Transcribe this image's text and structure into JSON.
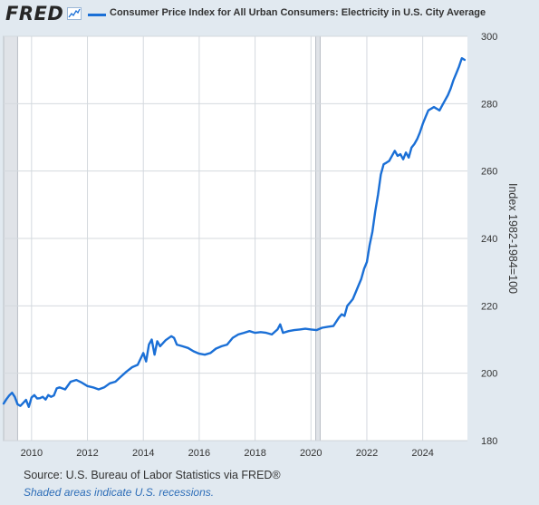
{
  "header": {
    "logo": "FRED",
    "series_label": "Consumer Price Index for All Urban Consumers: Electricity in U.S. City Average"
  },
  "footer": {
    "source": "U.S. Bureau of Labor Statistics via FRED®",
    "note": "Shaded areas indicate U.S. recessions."
  },
  "colors": {
    "line": "#1a6fd6",
    "recession": "#e0e3e8",
    "plot_bg": "#ffffff",
    "page_bg": "#e1e9f0",
    "grid": "#d4d9de"
  },
  "chart_data": {
    "type": "line",
    "title": "",
    "xlabel": "",
    "ylabel": "Index 1982-1984=100",
    "ylim": [
      180,
      300
    ],
    "xlim": [
      2009.0,
      2025.6
    ],
    "y_ticks": [
      180,
      200,
      220,
      240,
      260,
      280,
      300
    ],
    "x_ticks": [
      2010,
      2012,
      2014,
      2016,
      2018,
      2020,
      2022,
      2024
    ],
    "grid": true,
    "y_axis_side": "right",
    "recessions": [
      [
        2008.0,
        2009.5
      ],
      [
        2020.17,
        2020.33
      ]
    ],
    "series": [
      {
        "name": "Consumer Price Index for All Urban Consumers: Electricity in U.S. City Average",
        "x": [
          2009.0,
          2009.1,
          2009.2,
          2009.3,
          2009.4,
          2009.5,
          2009.6,
          2009.7,
          2009.8,
          2009.9,
          2010.0,
          2010.1,
          2010.2,
          2010.3,
          2010.4,
          2010.5,
          2010.6,
          2010.7,
          2010.8,
          2010.9,
          2011.0,
          2011.2,
          2011.4,
          2011.6,
          2011.8,
          2012.0,
          2012.2,
          2012.4,
          2012.6,
          2012.8,
          2013.0,
          2013.2,
          2013.4,
          2013.6,
          2013.8,
          2014.0,
          2014.1,
          2014.2,
          2014.3,
          2014.4,
          2014.5,
          2014.6,
          2014.8,
          2015.0,
          2015.1,
          2015.2,
          2015.4,
          2015.6,
          2015.8,
          2016.0,
          2016.2,
          2016.4,
          2016.6,
          2016.8,
          2017.0,
          2017.2,
          2017.4,
          2017.6,
          2017.8,
          2018.0,
          2018.2,
          2018.4,
          2018.6,
          2018.8,
          2018.9,
          2019.0,
          2019.2,
          2019.4,
          2019.6,
          2019.8,
          2020.0,
          2020.2,
          2020.4,
          2020.6,
          2020.8,
          2021.0,
          2021.1,
          2021.2,
          2021.3,
          2021.4,
          2021.5,
          2021.6,
          2021.7,
          2021.8,
          2021.9,
          2022.0,
          2022.1,
          2022.2,
          2022.3,
          2022.4,
          2022.5,
          2022.6,
          2022.7,
          2022.8,
          2022.9,
          2023.0,
          2023.1,
          2023.2,
          2023.3,
          2023.4,
          2023.5,
          2023.6,
          2023.7,
          2023.8,
          2023.9,
          2024.0,
          2024.1,
          2024.2,
          2024.3,
          2024.4,
          2024.5,
          2024.6,
          2024.7,
          2024.8,
          2024.9,
          2025.0,
          2025.1,
          2025.2,
          2025.3,
          2025.4,
          2025.5
        ],
        "values": [
          191.0,
          192.3,
          193.4,
          194.2,
          193.0,
          190.8,
          190.3,
          191.2,
          192.1,
          190.0,
          192.8,
          193.5,
          192.5,
          192.6,
          193.0,
          192.2,
          193.5,
          193.0,
          193.4,
          195.5,
          195.8,
          195.2,
          197.5,
          198.0,
          197.2,
          196.2,
          195.8,
          195.2,
          195.8,
          197.0,
          197.5,
          199.0,
          200.5,
          201.8,
          202.5,
          206.0,
          203.5,
          208.5,
          210.0,
          205.5,
          209.5,
          208.0,
          209.8,
          211.0,
          210.5,
          208.5,
          208.0,
          207.5,
          206.5,
          205.8,
          205.5,
          206.0,
          207.3,
          208.0,
          208.5,
          210.5,
          211.5,
          212.0,
          212.5,
          212.0,
          212.2,
          212.0,
          211.5,
          213.0,
          214.5,
          212.0,
          212.5,
          212.8,
          213.0,
          213.2,
          213.0,
          212.8,
          213.5,
          213.8,
          214.0,
          216.5,
          217.5,
          217.0,
          220.0,
          221.0,
          222.0,
          224.0,
          226.0,
          228.0,
          231.0,
          233.0,
          238.0,
          242.0,
          248.0,
          253.0,
          259.0,
          262.0,
          262.5,
          263.0,
          264.5,
          266.0,
          264.5,
          265.0,
          263.5,
          265.5,
          264.0,
          267.0,
          268.0,
          269.5,
          271.5,
          274.0,
          276.0,
          278.0,
          278.5,
          279.0,
          278.5,
          278.0,
          279.5,
          281.0,
          282.5,
          284.5,
          287.0,
          289.0,
          291.0,
          293.5,
          293.0
        ]
      }
    ]
  }
}
